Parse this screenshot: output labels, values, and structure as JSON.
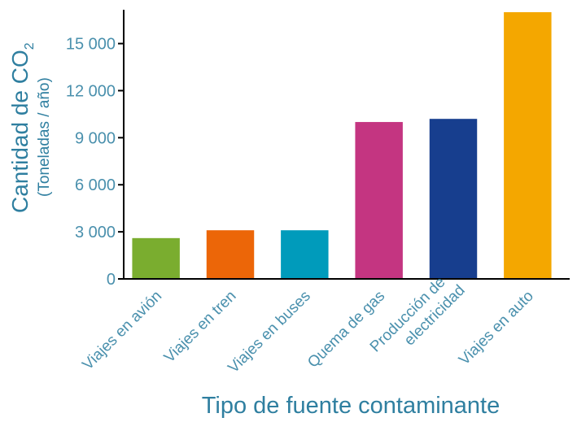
{
  "chart_data": {
    "type": "bar",
    "categories": [
      [
        "Viajes en avión"
      ],
      [
        "Viajes en tren"
      ],
      [
        "Viajes en buses"
      ],
      [
        "Quema de gas"
      ],
      [
        "Producción de",
        "electricidad"
      ],
      [
        "Viajes en auto"
      ]
    ],
    "values": [
      2600,
      3100,
      3100,
      10000,
      10200,
      17000
    ],
    "colors": [
      "#7aad2f",
      "#ec6608",
      "#009bbb",
      "#c43581",
      "#173e8e",
      "#f4a700"
    ],
    "ylim": [
      0,
      17000
    ],
    "yticks": [
      0,
      3000,
      6000,
      9000,
      12000,
      15000
    ],
    "ytick_labels": [
      "0",
      "3 000",
      "6 000",
      "9 000",
      "12 000",
      "15 000"
    ],
    "ylabel": "Cantidad de CO",
    "ylabel_subscript": "2",
    "ylabel_units": "(Toneladas / año)",
    "xlabel": "Tipo de fuente contaminante",
    "grid": false,
    "axis_color": "#000000",
    "text_color": "#4a90ad"
  }
}
